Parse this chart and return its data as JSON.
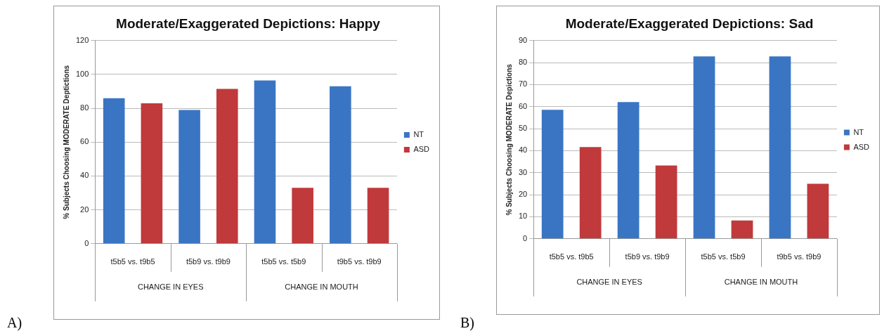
{
  "chart_data": [
    {
      "type": "bar",
      "title": "Moderate/Exaggerated Depictions: Happy",
      "ylabel": "% Subjects Choosing MODERATE Deptictions",
      "categories": [
        "t5b5 vs. t9b5",
        "t5b9 vs. t9b9",
        "t5b5 vs. t5b9",
        "t9b5 vs. t9b9"
      ],
      "series": [
        {
          "name": "NT",
          "color": "#3a75c4",
          "values": [
            86,
            79,
            96.5,
            93
          ]
        },
        {
          "name": "ASD",
          "color": "#c0393b",
          "values": [
            83,
            91.5,
            33,
            33
          ]
        }
      ],
      "ylim": [
        0,
        120
      ],
      "yticks": [
        0,
        20,
        40,
        60,
        80,
        100,
        120
      ],
      "grid": "y",
      "legend": "right",
      "annotations": [
        "CHANGE IN EYES",
        "CHANGE IN MOUTH",
        "A)"
      ]
    },
    {
      "type": "bar",
      "title": "Moderate/Exaggerated Depictions: Sad",
      "ylabel": "% Subjects Choosing MODERATE Depictions",
      "categories": [
        "t5b5 vs. t9b5",
        "t5b9 vs. t9b9",
        "t5b5 vs. t5b9",
        "t9b5 vs. t9b9"
      ],
      "series": [
        {
          "name": "NT",
          "color": "#3a75c4",
          "values": [
            58.6,
            62.1,
            82.8,
            82.8
          ]
        },
        {
          "name": "ASD",
          "color": "#c0393b",
          "values": [
            41.7,
            33.3,
            8.3,
            25
          ]
        }
      ],
      "ylim": [
        0,
        90
      ],
      "yticks": [
        0,
        10,
        20,
        30,
        40,
        50,
        60,
        70,
        80,
        90
      ],
      "grid": "y",
      "legend": "right",
      "annotations": [
        "CHANGE IN EYES",
        "CHANGE IN MOUTH",
        "B)"
      ]
    }
  ]
}
